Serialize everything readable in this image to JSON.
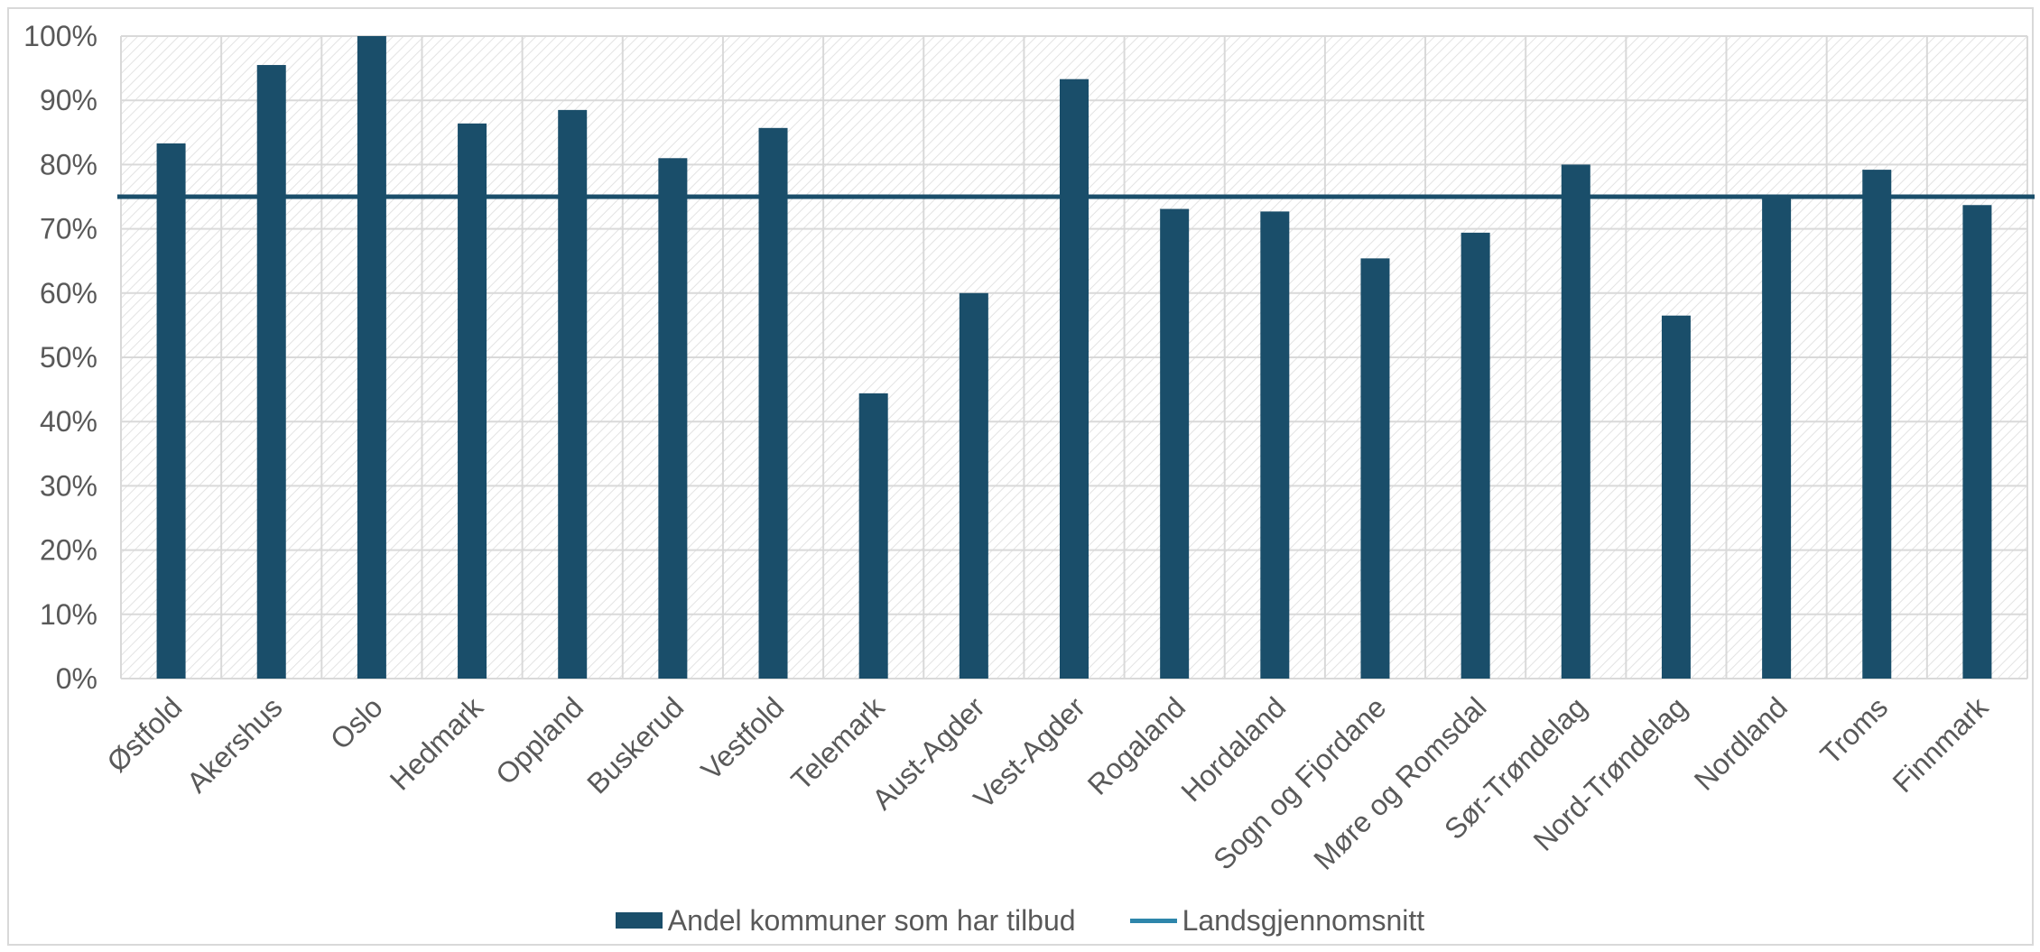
{
  "colors": {
    "bar": "#1a4e6a",
    "line": "#1a4e6a",
    "legend_line": "#2e86ab",
    "grid": "#d9d9d9",
    "hatch": "#e3e3e3"
  },
  "chart_data": {
    "type": "bar",
    "categories": [
      "Østfold",
      "Akershus",
      "Oslo",
      "Hedmark",
      "Oppland",
      "Buskerud",
      "Vestfold",
      "Telemark",
      "Aust-Agder",
      "Vest-Agder",
      "Rogaland",
      "Hordaland",
      "Sogn og Fjordane",
      "Møre og Romsdal",
      "Sør-Trøndelag",
      "Nord-Trøndelag",
      "Nordland",
      "Troms",
      "Finnmark"
    ],
    "series": [
      {
        "name": "Andel kommuner som har tilbud",
        "type": "bar",
        "values": [
          83.3,
          95.5,
          100,
          86.4,
          88.5,
          81.0,
          85.7,
          44.4,
          60.0,
          93.3,
          73.1,
          72.7,
          65.4,
          69.4,
          80.0,
          56.5,
          75.0,
          79.2,
          73.7
        ]
      },
      {
        "name": "Landsgjennomsnitt",
        "type": "line",
        "value": 75
      }
    ],
    "y_ticks": [
      "0%",
      "10%",
      "20%",
      "30%",
      "40%",
      "50%",
      "60%",
      "70%",
      "80%",
      "90%",
      "100%"
    ],
    "ylim": [
      0,
      100
    ],
    "title": "",
    "xlabel": "",
    "ylabel": "",
    "grid": true,
    "legend_position": "bottom"
  }
}
